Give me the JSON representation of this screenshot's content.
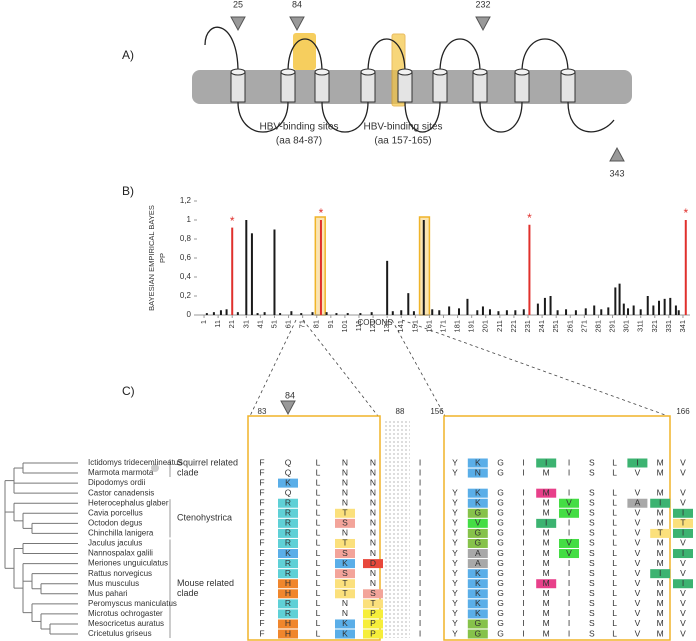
{
  "panel_a": {
    "label": "A)",
    "markers": [
      "25",
      "84",
      "232",
      "343"
    ],
    "sites": [
      [
        "HBV-binding sites",
        "(aa 84-87)"
      ],
      [
        "HBV-binding sites",
        "(aa 157-165)"
      ]
    ]
  },
  "chart_data": {
    "type": "bar",
    "label": "B)",
    "ylabel": [
      "BAYESIAN EMPIRICAL BAYES",
      "PP"
    ],
    "xlabel": "CODONS",
    "x": [
      3,
      8,
      13,
      17,
      21,
      25,
      31,
      35,
      39,
      44,
      51,
      55,
      63,
      70,
      78,
      84,
      88,
      95,
      103,
      112,
      120,
      131,
      135,
      141,
      146,
      150,
      157,
      163,
      168,
      175,
      182,
      188,
      195,
      199,
      204,
      210,
      216,
      222,
      228,
      232,
      238,
      243,
      247,
      252,
      258,
      265,
      272,
      278,
      283,
      288,
      293,
      296,
      299,
      302,
      306,
      311,
      316,
      320,
      324,
      328,
      332,
      336,
      338,
      343
    ],
    "values": [
      0.02,
      0.03,
      0.05,
      0.06,
      0.92,
      0.03,
      1.0,
      0.86,
      0.02,
      0.03,
      0.9,
      0.02,
      0.04,
      0.02,
      0.03,
      1.0,
      0.03,
      0.02,
      0.02,
      0.02,
      0.03,
      0.57,
      0.04,
      0.05,
      0.23,
      0.04,
      1.0,
      0.06,
      0.05,
      0.09,
      0.07,
      0.17,
      0.05,
      0.09,
      0.06,
      0.04,
      0.05,
      0.05,
      0.06,
      0.95,
      0.12,
      0.18,
      0.2,
      0.05,
      0.06,
      0.05,
      0.07,
      0.1,
      0.06,
      0.08,
      0.29,
      0.33,
      0.12,
      0.07,
      0.1,
      0.06,
      0.2,
      0.1,
      0.15,
      0.17,
      0.18,
      0.1,
      0.05,
      1.0
    ],
    "colors": [
      "#1a1a1a",
      "#1a1a1a",
      "#1a1a1a",
      "#1a1a1a",
      "#e0302c",
      "#1a1a1a",
      "#1a1a1a",
      "#1a1a1a",
      "#1a1a1a",
      "#1a1a1a",
      "#1a1a1a",
      "#1a1a1a",
      "#1a1a1a",
      "#1a1a1a",
      "#1a1a1a",
      "#e0302c",
      "#1a1a1a",
      "#1a1a1a",
      "#1a1a1a",
      "#1a1a1a",
      "#1a1a1a",
      "#1a1a1a",
      "#1a1a1a",
      "#1a1a1a",
      "#1a1a1a",
      "#1a1a1a",
      "#1a1a1a",
      "#1a1a1a",
      "#1a1a1a",
      "#1a1a1a",
      "#1a1a1a",
      "#1a1a1a",
      "#1a1a1a",
      "#1a1a1a",
      "#1a1a1a",
      "#1a1a1a",
      "#1a1a1a",
      "#1a1a1a",
      "#1a1a1a",
      "#e0302c",
      "#1a1a1a",
      "#1a1a1a",
      "#1a1a1a",
      "#1a1a1a",
      "#1a1a1a",
      "#1a1a1a",
      "#1a1a1a",
      "#1a1a1a",
      "#1a1a1a",
      "#1a1a1a",
      "#1a1a1a",
      "#1a1a1a",
      "#1a1a1a",
      "#1a1a1a",
      "#1a1a1a",
      "#1a1a1a",
      "#1a1a1a",
      "#1a1a1a",
      "#1a1a1a",
      "#1a1a1a",
      "#1a1a1a",
      "#1a1a1a",
      "#1a1a1a",
      "#e0302c"
    ],
    "xlim": [
      -4,
      346
    ],
    "xticks": [
      1,
      11,
      21,
      31,
      41,
      51,
      61,
      71,
      81,
      91,
      101,
      111,
      121,
      131,
      141,
      151,
      161,
      171,
      181,
      191,
      201,
      211,
      221,
      231,
      241,
      251,
      261,
      271,
      281,
      291,
      301,
      311,
      321,
      331,
      341
    ],
    "ylim": [
      0,
      1.2
    ],
    "yticks": [
      0,
      {
        "value": 0.2,
        "label": "0,2"
      },
      {
        "value": 0.4,
        "label": "0,4"
      },
      {
        "value": 0.6,
        "label": "0,6"
      },
      {
        "value": 0.8,
        "label": "0,8"
      },
      1,
      {
        "value": 1.2,
        "label": "1,2"
      }
    ],
    "highlight_ranges": [
      [
        80,
        87
      ],
      [
        154,
        161
      ]
    ],
    "highlight_color": "#f0b429",
    "grid": false,
    "annotations": [
      {
        "x": 21,
        "y": 0.92,
        "label": "*"
      },
      {
        "x": 84,
        "y": 1.0,
        "label": "*"
      },
      {
        "x": 232,
        "y": 0.95,
        "label": "*"
      },
      {
        "x": 343,
        "y": 1.0,
        "label": "*"
      }
    ]
  },
  "panel_c": {
    "label": "C)",
    "marker": "84",
    "positions": [
      "83",
      "88",
      "156",
      "166"
    ],
    "clades": [
      [
        "Squirrel related",
        "clade"
      ],
      [
        "Ctenohystrica"
      ],
      [
        "Mouse related",
        "clade"
      ]
    ],
    "residue_colors": {
      "K": "#5aaee8",
      "N": "#5aaee8",
      "R": "#5fd0d6",
      "H": "#f0862c",
      "T": "#fbe07c",
      "S": "#f3a49a",
      "D": "#e8483c",
      "P": "#f6ee3a",
      "G": "#86c24a",
      "A": "#a8a8a8",
      "V": "#44dd44",
      "I": "#3cb371",
      "M": "#e8408a"
    },
    "rows": [
      {
        "species": "Ictidomys tridecemlineatus",
        "left": [
          "F",
          "Q",
          "L",
          "N",
          "N"
        ],
        "left_marked": [],
        "mid": "I",
        "right": [
          "Y",
          "K",
          "G",
          "I",
          "I",
          "I",
          "S",
          "L",
          "I",
          "M",
          "V"
        ],
        "right_marked": [
          1,
          4,
          8
        ]
      },
      {
        "species": "Marmota marmota",
        "left": [
          "F",
          "Q",
          "L",
          "N",
          "N"
        ],
        "left_marked": [],
        "mid": "I",
        "right": [
          "Y",
          "N",
          "G",
          "I",
          "M",
          "I",
          "S",
          "L",
          "V",
          "M",
          "V"
        ],
        "right_marked": [
          1
        ]
      },
      {
        "species": "Dipodomys ordii",
        "left": [
          "F",
          "K",
          "L",
          "N",
          "N"
        ],
        "left_marked": [
          1
        ],
        "mid": "I",
        "right": [],
        "right_marked": []
      },
      {
        "species": "Castor canadensis",
        "left": [
          "F",
          "Q",
          "L",
          "N",
          "N"
        ],
        "left_marked": [],
        "mid": "I",
        "right": [
          "Y",
          "K",
          "G",
          "I",
          "M",
          "I",
          "S",
          "L",
          "V",
          "M",
          "V"
        ],
        "right_marked": [
          1,
          4
        ]
      },
      {
        "species": "Heterocephalus glaber",
        "left": [
          "F",
          "R",
          "L",
          "N",
          "N"
        ],
        "left_marked": [
          1
        ],
        "mid": "I",
        "right": [
          "Y",
          "K",
          "G",
          "I",
          "M",
          "V",
          "S",
          "L",
          "A",
          "I",
          "V"
        ],
        "right_marked": [
          1,
          5,
          8,
          9
        ]
      },
      {
        "species": "Cavia porcellus",
        "left": [
          "F",
          "R",
          "L",
          "T",
          "N"
        ],
        "left_marked": [
          1,
          3
        ],
        "mid": "I",
        "right": [
          "Y",
          "G",
          "G",
          "I",
          "M",
          "V",
          "S",
          "L",
          "V",
          "M",
          "I"
        ],
        "right_marked": [
          1,
          5,
          10
        ]
      },
      {
        "species": "Octodon degus",
        "left": [
          "F",
          "R",
          "L",
          "S",
          "N"
        ],
        "left_marked": [
          1,
          3
        ],
        "mid": "I",
        "right": [
          "Y",
          "V",
          "G",
          "I",
          "I",
          "I",
          "S",
          "L",
          "V",
          "M",
          "T"
        ],
        "right_marked": [
          1,
          4,
          10
        ]
      },
      {
        "species": "Chinchilla lanigera",
        "left": [
          "F",
          "R",
          "L",
          "N",
          "N"
        ],
        "left_marked": [
          1
        ],
        "mid": "I",
        "right": [
          "Y",
          "G",
          "G",
          "I",
          "M",
          "I",
          "S",
          "L",
          "V",
          "T",
          "I"
        ],
        "right_marked": [
          1,
          9,
          10
        ]
      },
      {
        "species": "Jaculus jaculus",
        "left": [
          "F",
          "R",
          "L",
          "T",
          "N"
        ],
        "left_marked": [
          1,
          3
        ],
        "mid": "I",
        "right": [
          "Y",
          "G",
          "G",
          "I",
          "M",
          "V",
          "S",
          "L",
          "V",
          "M",
          "V"
        ],
        "right_marked": [
          1,
          5
        ]
      },
      {
        "species": "Nannospalax galili",
        "left": [
          "F",
          "K",
          "L",
          "S",
          "N"
        ],
        "left_marked": [
          1,
          3
        ],
        "mid": "I",
        "right": [
          "Y",
          "A",
          "G",
          "I",
          "M",
          "V",
          "S",
          "L",
          "V",
          "M",
          "I"
        ],
        "right_marked": [
          1,
          5,
          10
        ]
      },
      {
        "species": "Meriones unguiculatus",
        "left": [
          "F",
          "R",
          "L",
          "K",
          "D"
        ],
        "left_marked": [
          1,
          3,
          4
        ],
        "mid": "I",
        "right": [
          "Y",
          "A",
          "G",
          "I",
          "M",
          "I",
          "S",
          "L",
          "V",
          "M",
          "V"
        ],
        "right_marked": [
          1
        ]
      },
      {
        "species": "Rattus norvegicus",
        "left": [
          "F",
          "R",
          "L",
          "S",
          "N"
        ],
        "left_marked": [
          1,
          3
        ],
        "mid": "I",
        "right": [
          "Y",
          "K",
          "G",
          "I",
          "M",
          "I",
          "S",
          "L",
          "V",
          "I",
          "V"
        ],
        "right_marked": [
          1,
          9
        ]
      },
      {
        "species": "Mus musculus",
        "left": [
          "F",
          "H",
          "L",
          "T",
          "N"
        ],
        "left_marked": [
          1,
          3
        ],
        "mid": "I",
        "right": [
          "Y",
          "K",
          "G",
          "I",
          "M",
          "I",
          "S",
          "L",
          "V",
          "M",
          "I"
        ],
        "right_marked": [
          1,
          4,
          10
        ]
      },
      {
        "species": "Mus pahari",
        "left": [
          "F",
          "H",
          "L",
          "T",
          "S"
        ],
        "left_marked": [
          1,
          3,
          4
        ],
        "mid": "I",
        "right": [
          "Y",
          "K",
          "G",
          "I",
          "M",
          "I",
          "S",
          "L",
          "V",
          "M",
          "V"
        ],
        "right_marked": [
          1
        ]
      },
      {
        "species": "Peromyscus maniculatus",
        "left": [
          "F",
          "R",
          "L",
          "N",
          "T"
        ],
        "left_marked": [
          1,
          4
        ],
        "mid": "I",
        "right": [
          "Y",
          "K",
          "G",
          "I",
          "M",
          "I",
          "S",
          "L",
          "V",
          "M",
          "V"
        ],
        "right_marked": [
          1
        ]
      },
      {
        "species": "Microtus ochrogaster",
        "left": [
          "F",
          "R",
          "L",
          "N",
          "P"
        ],
        "left_marked": [
          1,
          4
        ],
        "mid": "I",
        "right": [
          "Y",
          "K",
          "G",
          "I",
          "M",
          "I",
          "S",
          "L",
          "V",
          "M",
          "V"
        ],
        "right_marked": [
          1
        ]
      },
      {
        "species": "Mesocricetus auratus",
        "left": [
          "F",
          "H",
          "L",
          "K",
          "P"
        ],
        "left_marked": [
          1,
          3,
          4
        ],
        "mid": "I",
        "right": [
          "Y",
          "G",
          "G",
          "I",
          "M",
          "I",
          "S",
          "L",
          "V",
          "M",
          "V"
        ],
        "right_marked": [
          1
        ]
      },
      {
        "species": "Cricetulus griseus",
        "left": [
          "F",
          "H",
          "L",
          "K",
          "P"
        ],
        "left_marked": [
          1,
          3,
          4
        ],
        "mid": "I",
        "right": [
          "Y",
          "G",
          "G",
          "I",
          "M",
          "I",
          "S",
          "L",
          "V",
          "M",
          "V"
        ],
        "right_marked": [
          1
        ]
      }
    ]
  }
}
